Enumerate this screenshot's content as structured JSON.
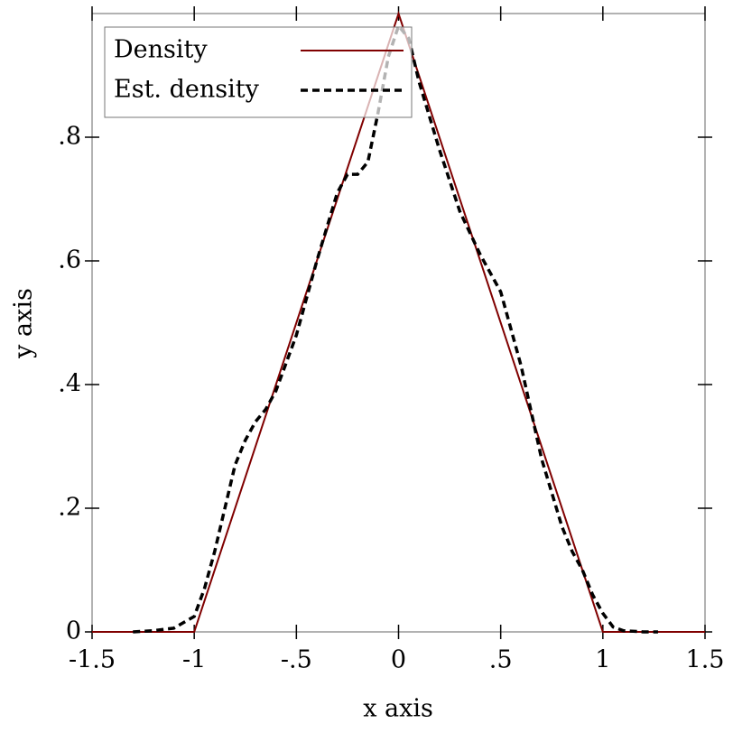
{
  "chart_data": {
    "type": "line",
    "xlabel": "x axis",
    "ylabel": "y axis",
    "xlim": [
      -1.5,
      1.5
    ],
    "ylim": [
      0,
      1
    ],
    "xticks": [
      {
        "value": -1.5,
        "label": "-1.5"
      },
      -1,
      {
        "value": -0.5,
        "label": "-.5"
      },
      0,
      {
        "value": 0.5,
        "label": ".5"
      },
      1,
      1.5
    ],
    "yticks": [
      0,
      {
        "value": 0.2,
        "label": ".2"
      },
      {
        "value": 0.4,
        "label": ".4"
      },
      {
        "value": 0.6,
        "label": ".6"
      },
      {
        "value": 0.8,
        "label": ".8"
      }
    ],
    "legend": "top-left",
    "series": [
      {
        "name": "Density",
        "color": "#800000",
        "dash": false,
        "x": [
          -1.5,
          -1,
          0,
          1,
          1.5
        ],
        "values": [
          0,
          0,
          1,
          0,
          0
        ]
      },
      {
        "name": "Est. density",
        "color": "#000000",
        "dash": true,
        "x": [
          -1.3,
          -1.2,
          -1.1,
          -1.0,
          -0.95,
          -0.9,
          -0.85,
          -0.8,
          -0.75,
          -0.7,
          -0.65,
          -0.6,
          -0.5,
          -0.4,
          -0.3,
          -0.25,
          -0.2,
          -0.15,
          -0.1,
          -0.05,
          0,
          0.05,
          0.1,
          0.2,
          0.3,
          0.4,
          0.5,
          0.6,
          0.7,
          0.8,
          0.85,
          0.9,
          0.95,
          1.0,
          1.05,
          1.1,
          1.2,
          1.27
        ],
        "values": [
          0,
          0.002,
          0.006,
          0.025,
          0.07,
          0.13,
          0.2,
          0.27,
          0.31,
          0.34,
          0.36,
          0.39,
          0.48,
          0.6,
          0.71,
          0.74,
          0.74,
          0.76,
          0.84,
          0.93,
          0.98,
          0.96,
          0.89,
          0.78,
          0.68,
          0.61,
          0.55,
          0.43,
          0.28,
          0.17,
          0.13,
          0.1,
          0.06,
          0.03,
          0.008,
          0.002,
          0,
          0
        ]
      }
    ]
  }
}
